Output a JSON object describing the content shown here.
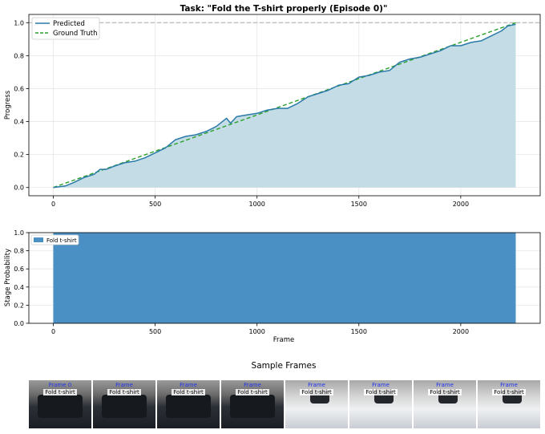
{
  "progress_chart": {
    "title": "Task: \"Fold the T-shirt properly (Episode 0)\"",
    "ylabel": "Progress",
    "legend": [
      "Predicted",
      "Ground Truth"
    ]
  },
  "stage_chart": {
    "ylabel": "Stage Probability",
    "xlabel": "Frame",
    "legend": [
      "Fold t-shirt"
    ]
  },
  "sample_frames": {
    "title": "Sample Frames",
    "frames": [
      {
        "frame_label": "Frame 0",
        "stage": "Fold t-shirt"
      },
      {
        "frame_label": "Frame",
        "stage": "Fold t-shirt"
      },
      {
        "frame_label": "Frame",
        "stage": "Fold t-shirt"
      },
      {
        "frame_label": "Frame",
        "stage": "Fold t-shirt"
      },
      {
        "frame_label": "Frame",
        "stage": "Fold t-shirt"
      },
      {
        "frame_label": "Frame",
        "stage": "Fold t-shirt"
      },
      {
        "frame_label": "Frame",
        "stage": "Fold t-shirt"
      },
      {
        "frame_label": "Frame",
        "stage": "Fold t-shirt"
      }
    ]
  },
  "colors": {
    "predicted": "#2a7aa8",
    "ground_truth": "#2ca02c",
    "fill": "#c3dce6",
    "stage_bar": "#4a90c4",
    "reference_line": "#aaaaaa"
  },
  "chart_data": [
    {
      "type": "line",
      "title": "Task: \"Fold the T-shirt properly (Episode 0)\"",
      "xlabel": "",
      "ylabel": "Progress",
      "xlim": [
        -120,
        2390
      ],
      "ylim": [
        -0.05,
        1.05
      ],
      "xticks": [
        0,
        500,
        1000,
        1500,
        2000
      ],
      "yticks": [
        0.0,
        0.2,
        0.4,
        0.6,
        0.8,
        1.0
      ],
      "grid": true,
      "legend_position": "top-left",
      "reference_line_y": 1.0,
      "series": [
        {
          "name": "Predicted",
          "style": "solid",
          "x": [
            0,
            60,
            100,
            150,
            200,
            230,
            260,
            300,
            350,
            400,
            450,
            500,
            550,
            600,
            650,
            700,
            750,
            800,
            850,
            870,
            900,
            950,
            1000,
            1050,
            1100,
            1150,
            1200,
            1250,
            1300,
            1350,
            1400,
            1450,
            1500,
            1550,
            1600,
            1650,
            1700,
            1750,
            1800,
            1850,
            1900,
            1950,
            2000,
            2050,
            2100,
            2150,
            2200,
            2230,
            2270
          ],
          "y": [
            0.0,
            0.01,
            0.03,
            0.06,
            0.08,
            0.11,
            0.11,
            0.13,
            0.15,
            0.16,
            0.18,
            0.21,
            0.24,
            0.29,
            0.31,
            0.32,
            0.34,
            0.37,
            0.42,
            0.39,
            0.43,
            0.44,
            0.45,
            0.47,
            0.48,
            0.48,
            0.51,
            0.55,
            0.57,
            0.59,
            0.62,
            0.63,
            0.67,
            0.68,
            0.7,
            0.71,
            0.76,
            0.78,
            0.79,
            0.81,
            0.83,
            0.86,
            0.86,
            0.88,
            0.89,
            0.92,
            0.95,
            0.98,
            0.99
          ]
        },
        {
          "name": "Ground Truth",
          "style": "dashed",
          "x": [
            0,
            2270
          ],
          "y": [
            0.0,
            1.0
          ]
        }
      ]
    },
    {
      "type": "area",
      "title": "",
      "xlabel": "Frame",
      "ylabel": "Stage Probability",
      "xlim": [
        -120,
        2390
      ],
      "ylim": [
        0.0,
        1.0
      ],
      "xticks": [
        0,
        500,
        1000,
        1500,
        2000
      ],
      "yticks": [
        0.0,
        0.2,
        0.4,
        0.6,
        0.8,
        1.0
      ],
      "grid": true,
      "legend_position": "top-left",
      "series": [
        {
          "name": "Fold t-shirt",
          "x": [
            0,
            2270
          ],
          "y": [
            1.0,
            1.0
          ]
        }
      ]
    }
  ]
}
